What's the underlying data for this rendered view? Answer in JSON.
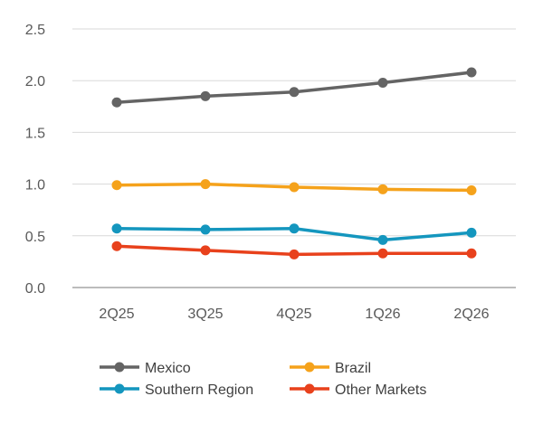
{
  "chart_data": {
    "type": "line",
    "title": "",
    "xlabel": "",
    "ylabel": "",
    "categories": [
      "2Q25",
      "3Q25",
      "4Q25",
      "1Q26",
      "2Q26"
    ],
    "ylim": [
      0,
      2.5
    ],
    "yticks": [
      "0.0",
      "0.5",
      "1.0",
      "1.5",
      "2.0",
      "2.5"
    ],
    "grid": true,
    "legend_position": "bottom",
    "series": [
      {
        "name": "Mexico",
        "color": "#646464",
        "values": [
          1.79,
          1.85,
          1.89,
          1.98,
          2.08
        ]
      },
      {
        "name": "Brazil",
        "color": "#F5A21B",
        "values": [
          0.99,
          1.0,
          0.97,
          0.95,
          0.94
        ]
      },
      {
        "name": "Southern Region",
        "color": "#1496BE",
        "values": [
          0.57,
          0.56,
          0.57,
          0.46,
          0.53
        ]
      },
      {
        "name": "Other Markets",
        "color": "#E8411C",
        "values": [
          0.4,
          0.36,
          0.32,
          0.33,
          0.33
        ]
      }
    ]
  }
}
